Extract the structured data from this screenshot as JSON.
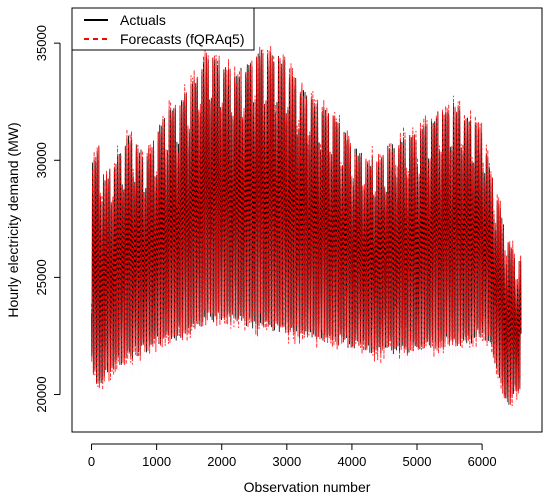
{
  "chart_data": {
    "type": "line",
    "title": "",
    "xlabel": "Observation number",
    "ylabel": "Hourly electricity demand (MW)",
    "xlim": [
      -300,
      6920
    ],
    "ylim": [
      18400,
      36500
    ],
    "x_ticks": [
      0,
      1000,
      2000,
      3000,
      4000,
      5000,
      6000
    ],
    "x_tick_labels": [
      "0",
      "1000",
      "2000",
      "3000",
      "4000",
      "5000",
      "6000"
    ],
    "y_ticks": [
      20000,
      25000,
      30000,
      35000
    ],
    "y_tick_labels": [
      "20000",
      "25000",
      "30000",
      "35000"
    ],
    "grid": false,
    "legend_position": "top-left",
    "n_points": 6600,
    "envelope_keypoints": {
      "x": [
        0,
        100,
        200,
        400,
        600,
        800,
        1000,
        1200,
        1400,
        1600,
        1800,
        2000,
        2200,
        2400,
        2600,
        2800,
        3000,
        3200,
        3400,
        3600,
        3800,
        4000,
        4200,
        4400,
        4600,
        4800,
        5000,
        5200,
        5400,
        5600,
        5800,
        6000,
        6100,
        6200,
        6300,
        6400,
        6500,
        6599
      ],
      "upper": [
        29500,
        30500,
        29000,
        30000,
        31000,
        30000,
        31000,
        32000,
        32500,
        33500,
        34500,
        34000,
        33500,
        34000,
        34500,
        34300,
        34000,
        33000,
        32500,
        32200,
        31500,
        30500,
        30000,
        29800,
        30500,
        30800,
        31000,
        31500,
        32000,
        32200,
        31800,
        31000,
        30000,
        28500,
        27500,
        26500,
        25800,
        25500
      ],
      "lower": [
        21500,
        20300,
        21000,
        21500,
        21700,
        22000,
        22300,
        22500,
        22700,
        23000,
        23300,
        23400,
        23300,
        23200,
        23000,
        22900,
        22800,
        22700,
        22600,
        22500,
        22400,
        22200,
        22100,
        22000,
        22000,
        22000,
        22100,
        22200,
        22200,
        22300,
        22400,
        22700,
        22500,
        21500,
        20500,
        19800,
        20200,
        20500
      ]
    },
    "day_length": 24,
    "series": [
      {
        "name": "Actuals",
        "color": "#000000",
        "line_style": "solid"
      },
      {
        "name": "Forecasts (fQRAq5)",
        "color": "#ff0000",
        "line_style": "dashed"
      }
    ],
    "interval_band_color": "#f0d6f4"
  }
}
